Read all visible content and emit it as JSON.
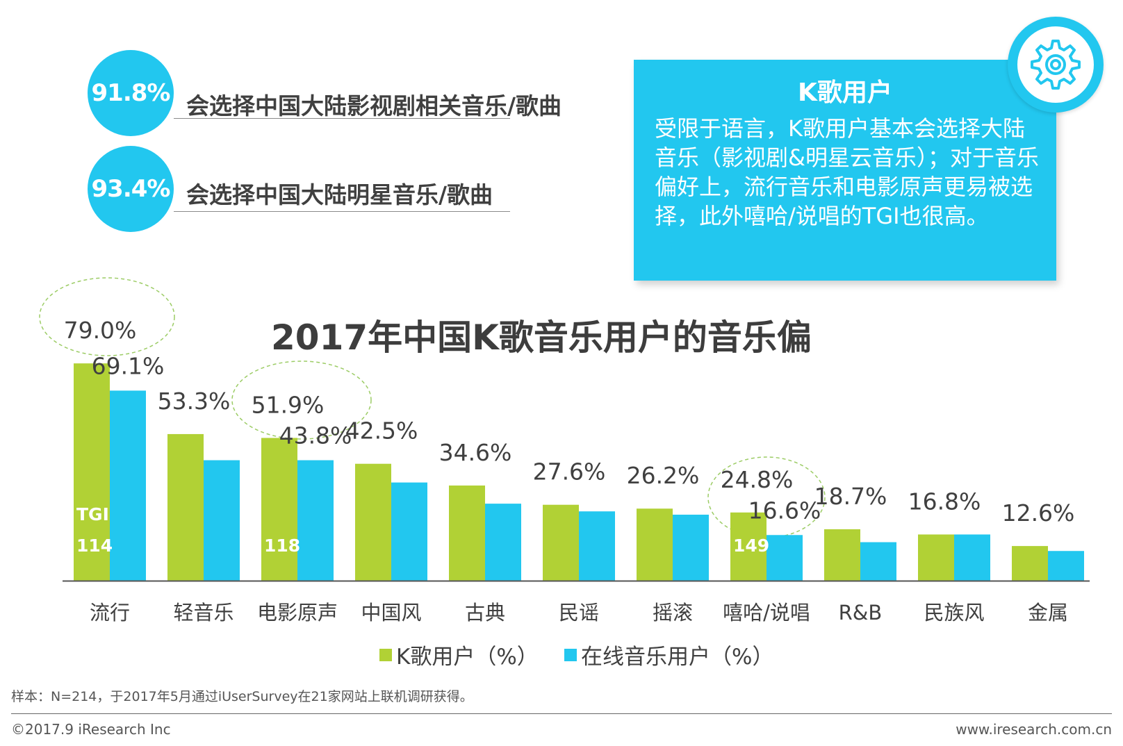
{
  "stats": [
    {
      "percent": "91.8%",
      "text": "会选择中国大陆影视剧相关音乐/歌曲"
    },
    {
      "percent": "93.4%",
      "text": "会选择中国大陆明星音乐/歌曲"
    }
  ],
  "infobox": {
    "title": "K歌用户",
    "body": "受限于语言，K歌用户基本会选择大陆音乐（影视剧&明星云音乐）；对于音乐偏好上，流行音乐和电影原声更易被选择，此外嘻哈/说唱的TGI也很高。",
    "icon": "gear-icon"
  },
  "chart_data": {
    "type": "bar",
    "title": "2017年中国K歌音乐用户的音乐偏",
    "categories": [
      "流行",
      "轻音乐",
      "电影原声",
      "中国风",
      "古典",
      "民谣",
      "摇滚",
      "嘻哈/说唱",
      "R&B",
      "民族风",
      "金属"
    ],
    "series": [
      {
        "name": "K歌用户（%）",
        "color": "#b1d135",
        "values": [
          79.0,
          53.3,
          51.9,
          42.5,
          34.6,
          27.6,
          26.2,
          24.8,
          18.7,
          16.8,
          12.6
        ],
        "labels": [
          "79.0%",
          "53.3%",
          "51.9%",
          "42.5%",
          "34.6%",
          "27.6%",
          "26.2%",
          "24.8%",
          "18.7%",
          "16.8%",
          "12.6%"
        ]
      },
      {
        "name": "在线音乐用户（%）",
        "color": "#22c7ef",
        "values": [
          69.1,
          43.8,
          43.8,
          35.7,
          28.0,
          25.2,
          24.0,
          16.6,
          14.0,
          16.8,
          10.8
        ],
        "labels": [
          "69.1%",
          "43.8%",
          "16.6%"
        ]
      }
    ],
    "tgi": [
      {
        "category": "流行",
        "labels": [
          "TGI",
          "114"
        ]
      },
      {
        "category": "电影原声",
        "labels": [
          "118"
        ]
      },
      {
        "category": "嘻哈/说唱",
        "labels": [
          "149"
        ]
      }
    ],
    "highlighted": [
      "流行",
      "电影原声",
      "嘻哈/说唱"
    ],
    "legend_position": "bottom",
    "grid": false
  },
  "footnote": "样本：N=214，于2017年5月通过iUserSurvey在21家网站上联机调研获得。",
  "copyright": "©2017.9 iResearch Inc",
  "website": "www.iresearch.com.cn"
}
